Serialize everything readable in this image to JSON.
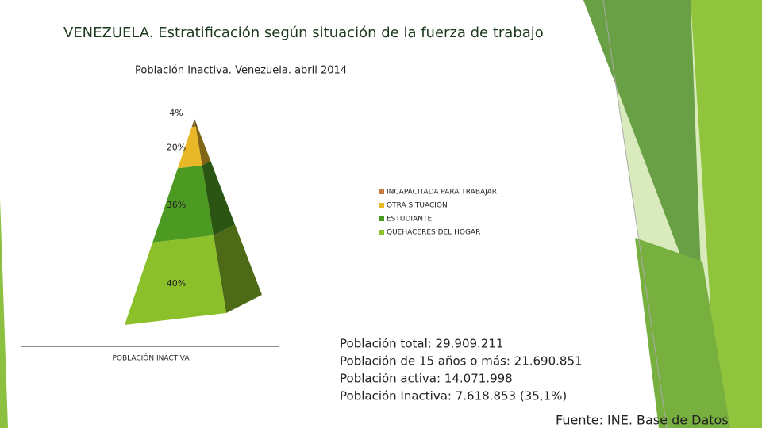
{
  "title": "VENEZUELA. Estratificación según situación de la fuerza de trabajo",
  "chart_data": {
    "type": "pyramid",
    "title": "Población Inactiva. Venezuela. abril 2014",
    "categories": [
      "INCAPACITADA PARA TRABAJAR",
      "OTRA SITUACIÓN",
      "ESTUDIANTE",
      "QUEHACERES DEL HOGAR"
    ],
    "values": [
      4,
      20,
      36,
      40
    ],
    "value_labels": [
      "4%",
      "20%",
      "36%",
      "40%"
    ],
    "colors": [
      "#8a6a28",
      "#e8b828",
      "#4c9a22",
      "#8cc02a"
    ],
    "legend_colors": [
      "#c87a44",
      "#e8b828",
      "#4c9a22",
      "#8cc02a"
    ],
    "xlabel": "POBLACIÓN INACTIVA"
  },
  "notes": [
    "Población total: 29.909.211",
    "Población de 15 años o más: 21.690.851",
    "Población activa: 14.071.998",
    "Población Inactiva: 7.618.853 (35,1%)"
  ],
  "source": "Fuente: INE. Base de Datos"
}
